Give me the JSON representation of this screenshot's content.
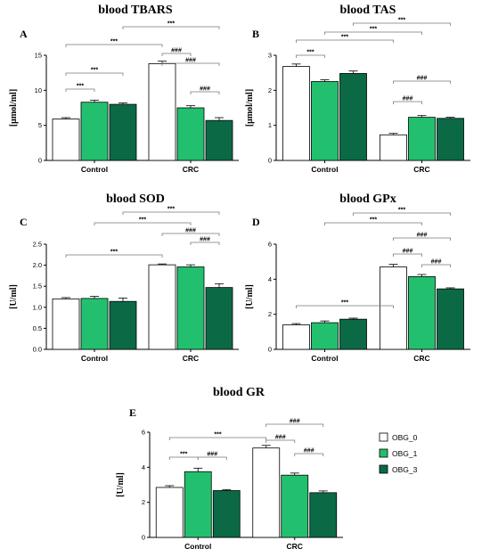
{
  "colors": {
    "OBG_0": "#ffffff",
    "OBG_1": "#22c06e",
    "OBG_3": "#0b6a45",
    "axis": "#000000",
    "bracket": "#7a7a7a"
  },
  "legend": {
    "position": "right of panel E",
    "entries": [
      {
        "name": "OBG_0",
        "color": "#ffffff"
      },
      {
        "name": "OBG_1",
        "color": "#22c06e"
      },
      {
        "name": "OBG_3",
        "color": "#0b6a45"
      }
    ]
  },
  "chart_data": [
    {
      "type": "bar",
      "panel": "A",
      "title": "blood TBARS",
      "ylabel": "[μmol/ml]",
      "xlabel": "",
      "categories": [
        "Control",
        "CRC"
      ],
      "ylim": [
        0,
        15
      ],
      "yticks": [
        0,
        5,
        10,
        15
      ],
      "yticklabels": [
        "0",
        "5",
        "10",
        "15"
      ],
      "series": [
        {
          "name": "OBG_0",
          "values": [
            5.9,
            13.8
          ],
          "errors": [
            0.2,
            0.35
          ]
        },
        {
          "name": "OBG_1",
          "values": [
            8.3,
            7.5
          ],
          "errors": [
            0.3,
            0.3
          ]
        },
        {
          "name": "OBG_3",
          "values": [
            8.0,
            5.7
          ],
          "errors": [
            0.2,
            0.4
          ]
        }
      ],
      "brackets": [
        {
          "from": [
            0,
            0
          ],
          "to": [
            0,
            1
          ],
          "label": "***",
          "level": 1
        },
        {
          "from": [
            0,
            0
          ],
          "to": [
            0,
            2
          ],
          "label": "***",
          "level": 2
        },
        {
          "from": [
            0,
            0
          ],
          "to": [
            1,
            0
          ],
          "label": "***",
          "level": 3
        },
        {
          "from": [
            1,
            0
          ],
          "to": [
            1,
            1
          ],
          "label": "###",
          "level": 1
        },
        {
          "from": [
            1,
            0
          ],
          "to": [
            1,
            2
          ],
          "label": "###",
          "level": 2
        },
        {
          "from": [
            0,
            2
          ],
          "to": [
            1,
            2
          ],
          "label": "***",
          "level": 3.8
        },
        {
          "from": [
            1,
            1
          ],
          "to": [
            1,
            2
          ],
          "label": "###",
          "level": -1
        }
      ]
    },
    {
      "type": "bar",
      "panel": "B",
      "title": "blood TAS",
      "ylabel": "[μmol/ml]",
      "xlabel": "",
      "categories": [
        "Control",
        "CRC"
      ],
      "ylim": [
        0,
        3
      ],
      "yticks": [
        0,
        1,
        2,
        3
      ],
      "yticklabels": [
        "0",
        "1",
        "2",
        "3"
      ],
      "series": [
        {
          "name": "OBG_0",
          "values": [
            2.68,
            0.73
          ],
          "errors": [
            0.07,
            0.04
          ]
        },
        {
          "name": "OBG_1",
          "values": [
            2.25,
            1.23
          ],
          "errors": [
            0.05,
            0.05
          ]
        },
        {
          "name": "OBG_3",
          "values": [
            2.48,
            1.2
          ],
          "errors": [
            0.07,
            0.03
          ]
        }
      ],
      "brackets": [
        {
          "from": [
            0,
            0
          ],
          "to": [
            0,
            1
          ],
          "label": "***",
          "level": 1
        },
        {
          "from": [
            0,
            0
          ],
          "to": [
            1,
            0
          ],
          "label": "***",
          "level": 2
        },
        {
          "from": [
            0,
            1
          ],
          "to": [
            1,
            1
          ],
          "label": "***",
          "level": 3
        },
        {
          "from": [
            0,
            2
          ],
          "to": [
            1,
            2
          ],
          "label": "***",
          "level": 4
        },
        {
          "from": [
            1,
            0
          ],
          "to": [
            1,
            1
          ],
          "label": "###",
          "level": 1
        },
        {
          "from": [
            1,
            0
          ],
          "to": [
            1,
            2
          ],
          "label": "###",
          "level": 2
        }
      ]
    },
    {
      "type": "bar",
      "panel": "C",
      "title": "blood SOD",
      "ylabel": "[U/ml]",
      "xlabel": "",
      "categories": [
        "Control",
        "CRC"
      ],
      "ylim": [
        0,
        2.5
      ],
      "yticks": [
        0,
        0.5,
        1.0,
        1.5,
        2.0,
        2.5
      ],
      "yticklabels": [
        "0.0",
        "0.5",
        "1.0",
        "1.5",
        "2.0",
        "2.5"
      ],
      "series": [
        {
          "name": "OBG_0",
          "values": [
            1.2,
            2.01
          ],
          "errors": [
            0.03,
            0.02
          ]
        },
        {
          "name": "OBG_1",
          "values": [
            1.21,
            1.96
          ],
          "errors": [
            0.05,
            0.05
          ]
        },
        {
          "name": "OBG_3",
          "values": [
            1.14,
            1.47
          ],
          "errors": [
            0.08,
            0.09
          ]
        }
      ],
      "brackets": [
        {
          "from": [
            0,
            0
          ],
          "to": [
            1,
            0
          ],
          "label": "***",
          "level": 1
        },
        {
          "from": [
            1,
            1
          ],
          "to": [
            1,
            2
          ],
          "label": "###",
          "level": 1
        },
        {
          "from": [
            1,
            0
          ],
          "to": [
            1,
            2
          ],
          "label": "###",
          "level": 2
        },
        {
          "from": [
            0,
            1
          ],
          "to": [
            1,
            1
          ],
          "label": "***",
          "level": 3
        },
        {
          "from": [
            0,
            2
          ],
          "to": [
            1,
            2
          ],
          "label": "***",
          "level": 4
        }
      ]
    },
    {
      "type": "bar",
      "panel": "D",
      "title": "blood GPx",
      "ylabel": "[U/ml]",
      "xlabel": "",
      "categories": [
        "Control",
        "CRC"
      ],
      "ylim": [
        0,
        6
      ],
      "yticks": [
        0,
        2,
        4,
        6
      ],
      "yticklabels": [
        "0",
        "2",
        "4",
        "6"
      ],
      "series": [
        {
          "name": "OBG_0",
          "values": [
            1.4,
            4.7
          ],
          "errors": [
            0.07,
            0.15
          ]
        },
        {
          "name": "OBG_1",
          "values": [
            1.52,
            4.15
          ],
          "errors": [
            0.1,
            0.12
          ]
        },
        {
          "name": "OBG_3",
          "values": [
            1.72,
            3.45
          ],
          "errors": [
            0.06,
            0.06
          ]
        }
      ],
      "brackets": [
        {
          "from": [
            0,
            0
          ],
          "to": [
            1,
            0
          ],
          "label": "***",
          "level": 1
        },
        {
          "from": [
            1,
            1
          ],
          "to": [
            1,
            2
          ],
          "label": "###",
          "level": 1
        },
        {
          "from": [
            1,
            0
          ],
          "to": [
            1,
            1
          ],
          "label": "###",
          "level": 2
        },
        {
          "from": [
            1,
            0
          ],
          "to": [
            1,
            2
          ],
          "label": "###",
          "level": 3
        },
        {
          "from": [
            0,
            1
          ],
          "to": [
            1,
            1
          ],
          "label": "***",
          "level": 4
        },
        {
          "from": [
            0,
            2
          ],
          "to": [
            1,
            2
          ],
          "label": "***",
          "level": 5
        }
      ]
    },
    {
      "type": "bar",
      "panel": "E",
      "title": "blood GR",
      "ylabel": "[U/ml]",
      "xlabel": "",
      "categories": [
        "Control",
        "CRC"
      ],
      "ylim": [
        0,
        6
      ],
      "yticks": [
        0,
        2,
        4,
        6
      ],
      "yticklabels": [
        "0",
        "2",
        "4",
        "6"
      ],
      "series": [
        {
          "name": "OBG_0",
          "values": [
            2.85,
            5.1
          ],
          "errors": [
            0.1,
            0.15
          ]
        },
        {
          "name": "OBG_1",
          "values": [
            3.75,
            3.55
          ],
          "errors": [
            0.2,
            0.12
          ]
        },
        {
          "name": "OBG_3",
          "values": [
            2.67,
            2.55
          ],
          "errors": [
            0.06,
            0.1
          ]
        }
      ],
      "brackets": [
        {
          "from": [
            0,
            0
          ],
          "to": [
            0,
            1
          ],
          "label": "***",
          "level": 1
        },
        {
          "from": [
            0,
            1
          ],
          "to": [
            0,
            2
          ],
          "label": "###",
          "level": 1
        },
        {
          "from": [
            0,
            0
          ],
          "to": [
            1,
            0
          ],
          "label": "***",
          "level": 2
        },
        {
          "from": [
            1,
            1
          ],
          "to": [
            1,
            2
          ],
          "label": "###",
          "level": 1
        },
        {
          "from": [
            1,
            0
          ],
          "to": [
            1,
            1
          ],
          "label": "###",
          "level": 2
        },
        {
          "from": [
            1,
            0
          ],
          "to": [
            1,
            2
          ],
          "label": "###",
          "level": 3
        }
      ]
    }
  ]
}
